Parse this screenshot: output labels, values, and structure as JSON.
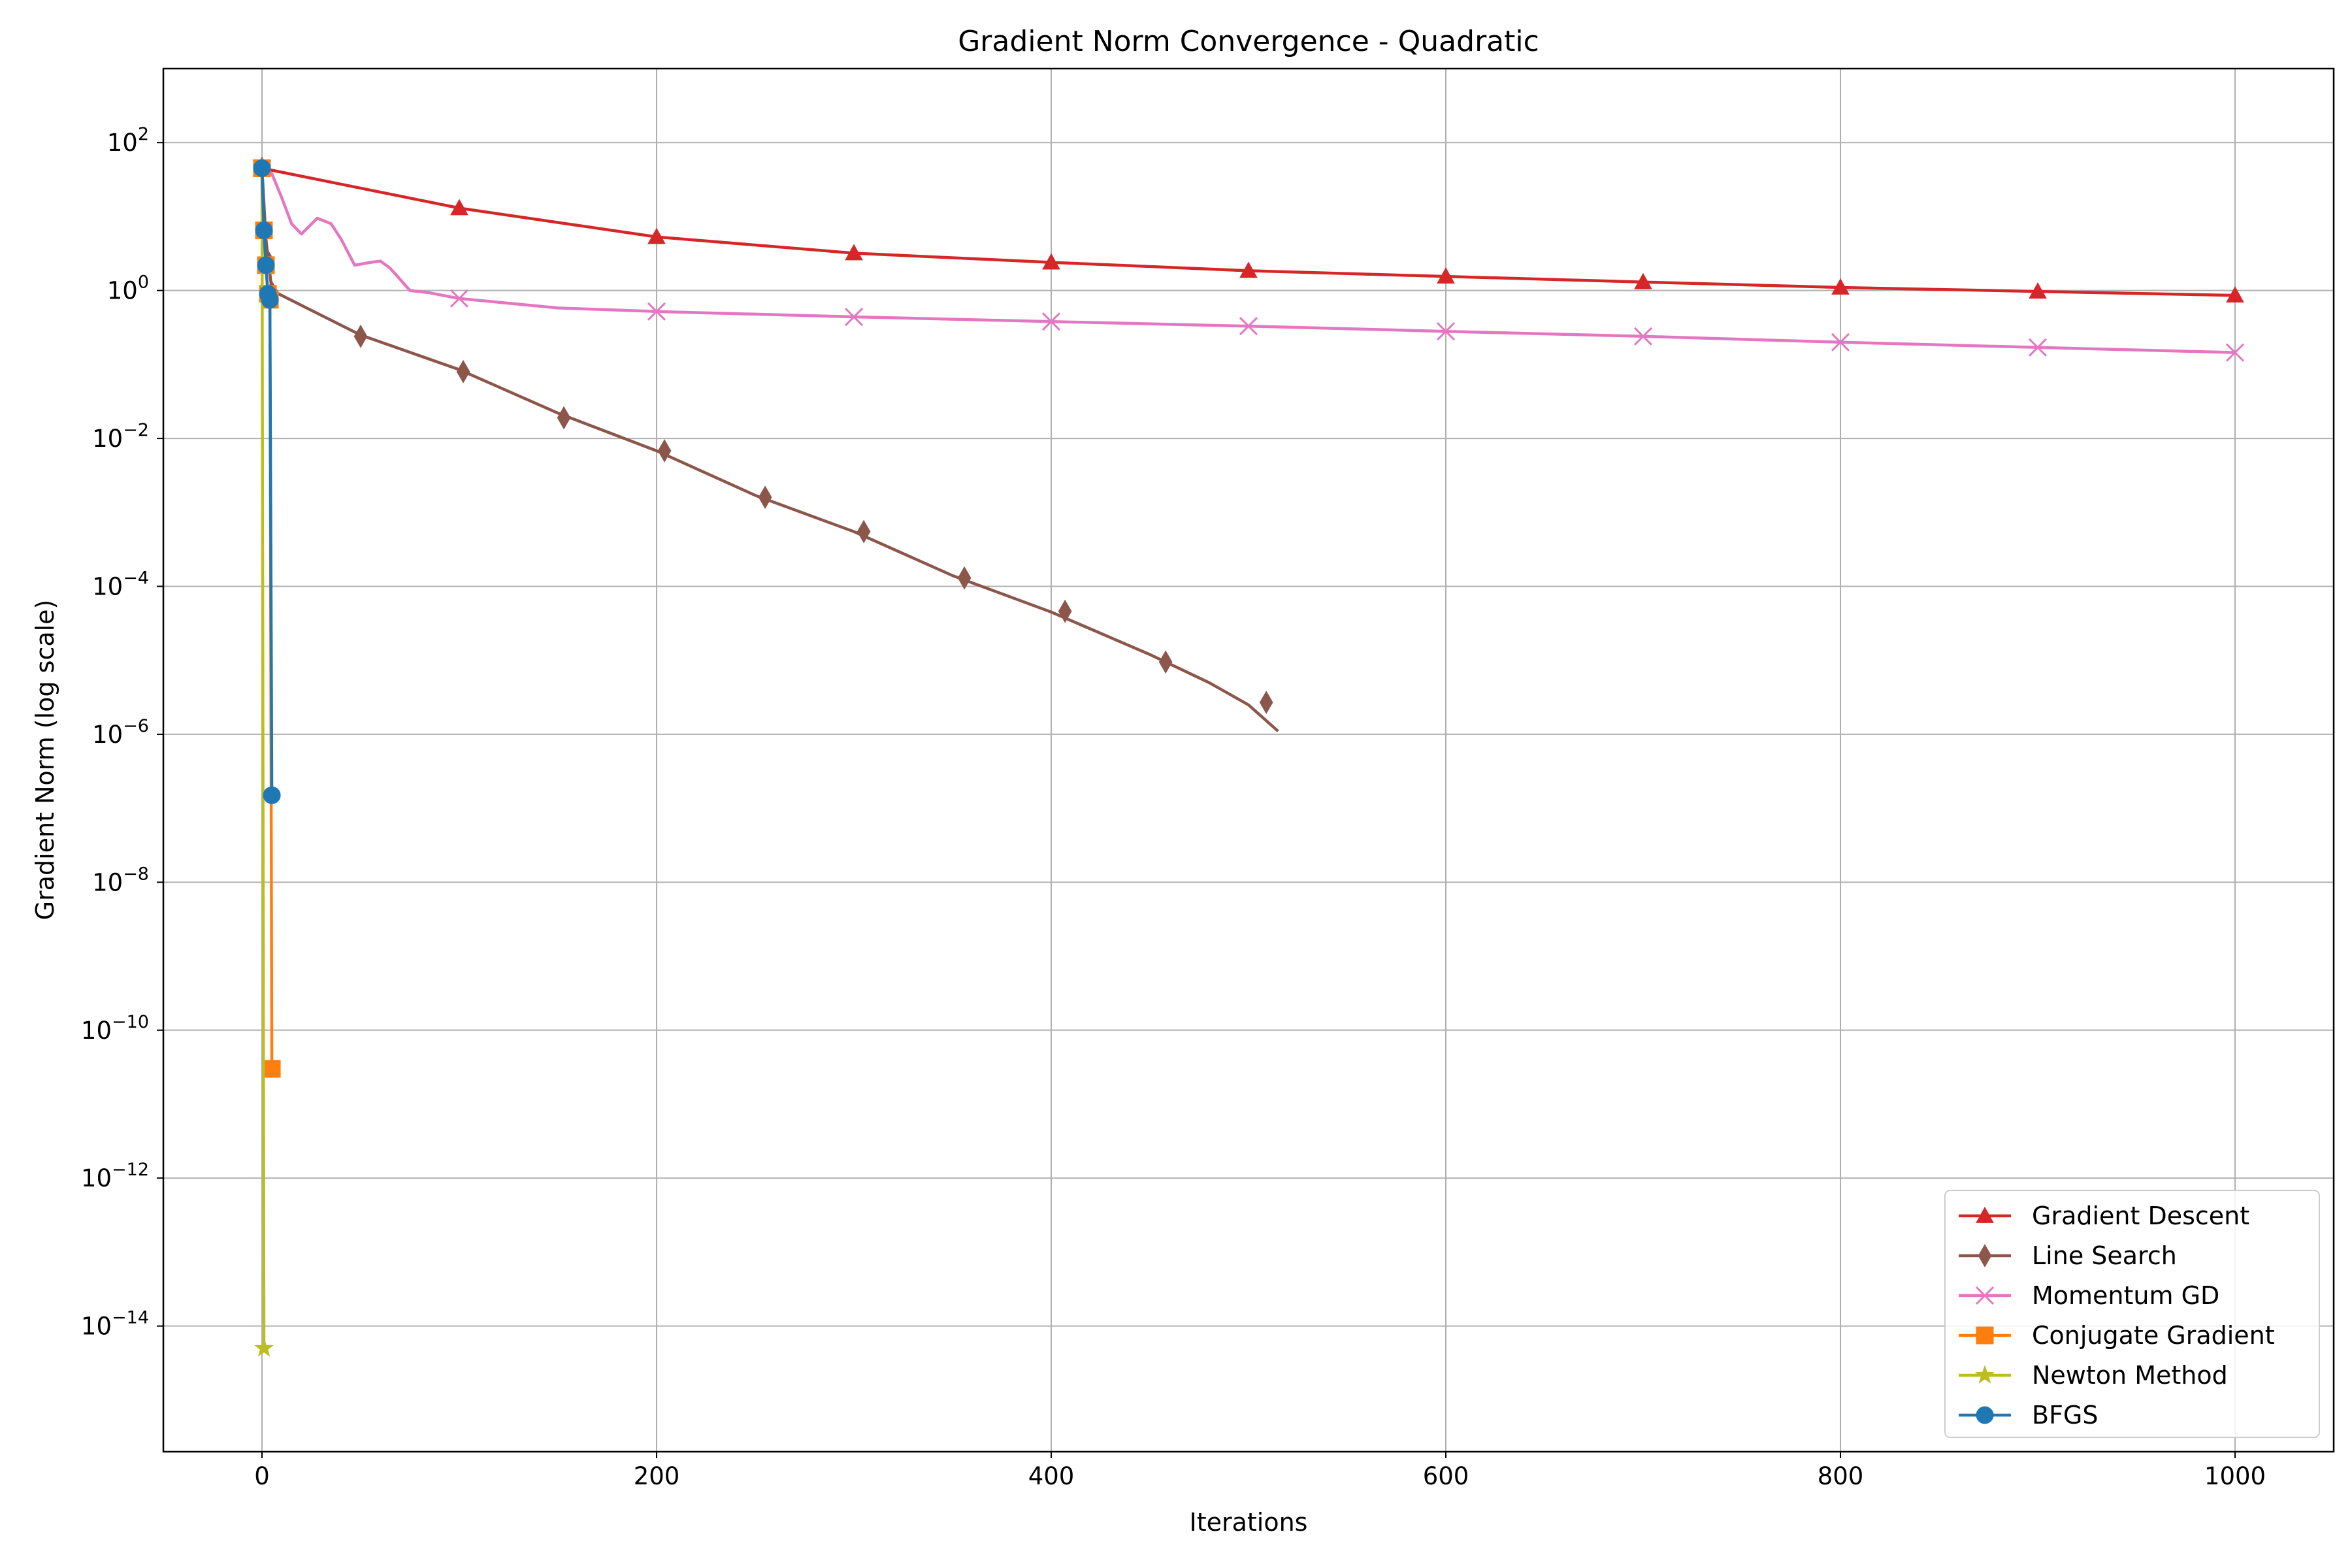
{
  "chart_data": {
    "type": "line",
    "title": "Gradient Norm Convergence - Quadratic",
    "xlabel": "Iterations",
    "ylabel": "Gradient Norm (log scale)",
    "xlim": [
      -50,
      1050
    ],
    "ylim": [
      2e-16,
      1000
    ],
    "yscale": "log",
    "grid": true,
    "legend_position": "lower right",
    "x_ticks": [
      0,
      200,
      400,
      600,
      800,
      1000
    ],
    "x_tick_labels": [
      "0",
      "200",
      "400",
      "600",
      "800",
      "1000"
    ],
    "y_tick_exponents": [
      2,
      0,
      -2,
      -4,
      -6,
      -8,
      -10,
      -12,
      -14
    ],
    "series": [
      {
        "name": "Gradient Descent",
        "color": "#d62728",
        "marker": "triangle",
        "x": [
          0,
          100,
          200,
          300,
          400,
          500,
          600,
          700,
          800,
          900,
          1000
        ],
        "y": [
          45,
          13,
          5.3,
          3.2,
          2.4,
          1.85,
          1.55,
          1.3,
          1.1,
          0.97,
          0.86
        ],
        "marker_x": [
          0,
          100,
          200,
          300,
          400,
          500,
          600,
          700,
          800,
          900,
          1000
        ]
      },
      {
        "name": "Line Search",
        "color": "#8c564b",
        "marker": "diamond",
        "x": [
          0,
          2,
          5,
          50,
          100,
          150,
          200,
          250,
          300,
          350,
          400,
          450,
          480,
          500,
          515
        ],
        "y": [
          45,
          5,
          1.0,
          0.25,
          0.085,
          0.022,
          0.0068,
          0.0017,
          0.00055,
          0.00014,
          4.5e-05,
          1.2e-05,
          5e-06,
          2.5e-06,
          1.1e-06
        ],
        "marker_x": [
          0,
          3,
          5,
          50,
          102,
          153,
          204,
          255,
          305,
          356,
          407,
          458,
          509
        ],
        "marker_y": [
          45,
          2.5,
          0.95,
          0.24,
          0.08,
          0.019,
          0.0068,
          0.0016,
          0.00055,
          0.00013,
          4.6e-05,
          9.5e-06,
          2.7e-06
        ]
      },
      {
        "name": "Momentum GD",
        "color": "#e377c2",
        "marker": "x",
        "x": [
          0,
          5,
          10,
          15,
          20,
          28,
          35,
          40,
          47,
          55,
          60,
          65,
          75,
          85,
          100,
          150,
          200,
          300,
          400,
          500,
          600,
          700,
          800,
          900,
          1000
        ],
        "y": [
          45,
          38,
          18,
          8,
          5.8,
          9.5,
          8,
          5,
          2.2,
          2.4,
          2.5,
          2.0,
          1.0,
          0.93,
          0.78,
          0.58,
          0.52,
          0.44,
          0.38,
          0.33,
          0.28,
          0.24,
          0.2,
          0.17,
          0.145
        ],
        "marker_x": [
          0,
          100,
          200,
          300,
          400,
          500,
          600,
          700,
          800,
          900,
          1000
        ],
        "marker_y": [
          45,
          0.78,
          0.52,
          0.44,
          0.38,
          0.33,
          0.28,
          0.24,
          0.2,
          0.17,
          0.145
        ]
      },
      {
        "name": "Conjugate Gradient",
        "color": "#ff7f0e",
        "marker": "square",
        "x": [
          0,
          1,
          2,
          3,
          4,
          5
        ],
        "y": [
          45,
          6.5,
          2.2,
          0.9,
          0.75,
          3e-11
        ],
        "marker_x": [
          0,
          1,
          2,
          3,
          4,
          5
        ]
      },
      {
        "name": "Newton Method",
        "color": "#bcbd22",
        "marker": "star",
        "x": [
          0,
          1
        ],
        "y": [
          45,
          5e-15
        ],
        "marker_x": [
          0,
          1
        ]
      },
      {
        "name": "BFGS",
        "color": "#1f77b4",
        "marker": "circle",
        "x": [
          0,
          1,
          2,
          3,
          4,
          5
        ],
        "y": [
          45,
          6.5,
          2.2,
          0.9,
          0.75,
          1.5e-07
        ],
        "marker_x": [
          0,
          1,
          2,
          3,
          4,
          5
        ]
      }
    ]
  }
}
